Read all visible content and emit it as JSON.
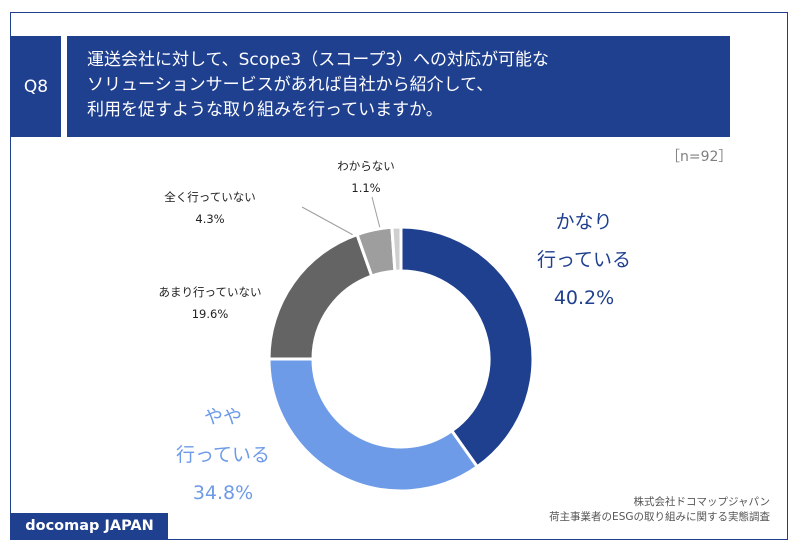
{
  "question": {
    "number": "Q8",
    "lines": [
      "運送会社に対して、Scope3（スコープ3）への対応が可能な",
      "ソリューションサービスがあれば自社から紹介して、",
      "利用を促すような取り組みを行っていますか。"
    ]
  },
  "sample_size": "［n=92］",
  "chart_data": {
    "type": "pie",
    "subtype": "donut",
    "title": "",
    "slices": [
      {
        "label_lines": [
          "かなり",
          "行っている"
        ],
        "value": 40.2,
        "pct_label": "40.2%",
        "color": "#1f3f8f"
      },
      {
        "label_lines": [
          "やや",
          "行っている"
        ],
        "value": 34.8,
        "pct_label": "34.8%",
        "color": "#6e9be8"
      },
      {
        "label_lines": [
          "あまり行っていない"
        ],
        "value": 19.6,
        "pct_label": "19.6%",
        "color": "#646464"
      },
      {
        "label_lines": [
          "全く行っていない"
        ],
        "value": 4.3,
        "pct_label": "4.3%",
        "color": "#9e9e9e"
      },
      {
        "label_lines": [
          "わからない"
        ],
        "value": 1.1,
        "pct_label": "1.1%",
        "color": "#cfcfcf"
      }
    ]
  },
  "source": {
    "lines": [
      "株式会社ドコマップジャパン",
      "荷主事業者のESGの取り組みに関する実態調査"
    ]
  },
  "logo": {
    "text": "docomap JAPAN"
  },
  "colors": {
    "brand": "#1f3f8f",
    "accent_light": "#6e9be8"
  }
}
